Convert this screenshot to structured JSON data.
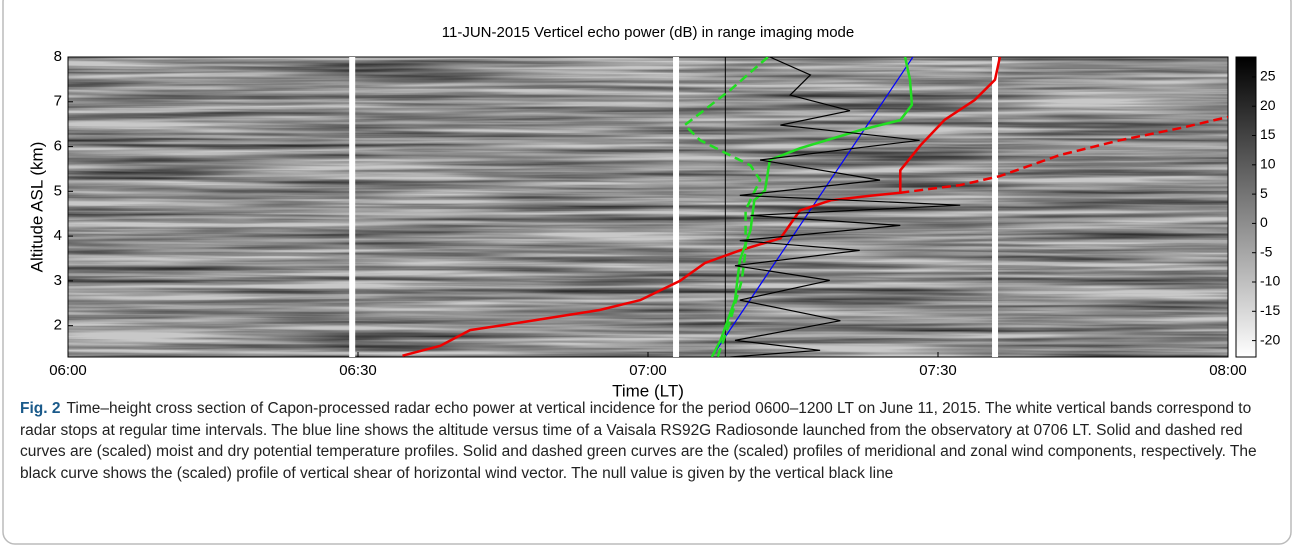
{
  "chart_data": {
    "type": "line",
    "title": "11-JUN-2015 Verticel echo power (dB) in range imaging mode",
    "xlabel": "Time (LT)",
    "ylabel": "Altitude ASL (km)",
    "xlim": [
      0,
      120
    ],
    "xticks": [
      {
        "value": 0,
        "label": "06:00"
      },
      {
        "value": 30,
        "label": "06:30"
      },
      {
        "value": 60,
        "label": "07:00"
      },
      {
        "value": 90,
        "label": "07:30"
      },
      {
        "value": 120,
        "label": "08:00"
      }
    ],
    "ylim": [
      1.3,
      8
    ],
    "yticks": [
      2,
      3,
      4,
      5,
      6,
      7,
      8
    ],
    "colorbar": {
      "lim": [
        -22.8,
        28.4
      ],
      "ticks": [
        25,
        20,
        15,
        10,
        5,
        0,
        -5,
        -10,
        -15,
        -20
      ]
    },
    "radar_stops": [
      29.4,
      62.9,
      95.9
    ],
    "null_line": 68.0,
    "series": [
      {
        "color": "#0000ff",
        "dash": false,
        "x": [
          66.6,
          87.4
        ],
        "values": [
          1.3,
          8
        ]
      },
      {
        "color": "#ee0000",
        "dash": false,
        "x": [
          34.6,
          38.5,
          41.6,
          46.8,
          55.0,
          59.2,
          63.3,
          65.9,
          69.5,
          73.7,
          75.7,
          78.9,
          83.0,
          86.1,
          86.1,
          88.2,
          90.7,
          93.8,
          95.9,
          96.4
        ],
        "values": [
          1.33,
          1.55,
          1.9,
          2.07,
          2.35,
          2.57,
          3.0,
          3.4,
          3.68,
          3.95,
          4.57,
          4.8,
          4.9,
          4.97,
          5.47,
          6.03,
          6.6,
          7.04,
          7.49,
          8
        ]
      },
      {
        "color": "#ee0000",
        "dash": true,
        "x": [
          86.1,
          92.3,
          96.4,
          102.6,
          108.8,
          115.0,
          120
        ],
        "values": [
          4.97,
          5.14,
          5.34,
          5.81,
          6.14,
          6.41,
          6.66
        ]
      },
      {
        "color": "#22dd22",
        "dash": false,
        "x": [
          86.6,
          87.1,
          87.3,
          86.1,
          82.0,
          75.7,
          72.6,
          72.1,
          71.0,
          70.6,
          69.5,
          69.0,
          67.5,
          66.6
        ],
        "values": [
          8,
          7.49,
          6.93,
          6.59,
          6.37,
          5.96,
          5.7,
          5.02,
          4.8,
          4.13,
          3.46,
          2.57,
          1.67,
          1.3
        ]
      },
      {
        "color": "#22dd22",
        "dash": true,
        "x": [
          72.4,
          68.5,
          63.8,
          65.4,
          70.6,
          71.6,
          70.1,
          70.1,
          69.7,
          68.5,
          67.2
        ],
        "values": [
          8,
          7.26,
          6.48,
          6.14,
          5.58,
          5.25,
          4.58,
          3.68,
          3.01,
          2.11,
          1.3
        ]
      },
      {
        "color": "#000000",
        "dash": false,
        "x": [
          72.6,
          76.8,
          74.7,
          80.9,
          73.7,
          88.1,
          71.6,
          84.0,
          69.5,
          92.3,
          70.6,
          86.1,
          69.5,
          81.9,
          69.0,
          78.8,
          69.5,
          79.9,
          69.0,
          77.8,
          68.5
        ],
        "values": [
          8,
          7.6,
          7.15,
          6.8,
          6.48,
          6.14,
          5.7,
          5.25,
          4.91,
          4.69,
          4.46,
          4.24,
          3.9,
          3.68,
          3.34,
          3.01,
          2.57,
          2.11,
          1.67,
          1.45,
          1.3
        ]
      }
    ]
  },
  "caption": {
    "label": "Fig. 2",
    "text": "Time–height cross section of Capon-processed radar echo power at vertical incidence for the period 0600–1200 LT on June 11, 2015. The white vertical bands correspond to radar stops at regular time intervals. The blue line shows the altitude versus time of a Vaisala RS92G Radiosonde launched from the observatory at 0706 LT. Solid and dashed red curves are (scaled) moist and dry potential temperature profiles. Solid and dashed green curves are the (scaled) profiles of meridional and zonal wind components, respectively. The black curve shows the (scaled) profile of vertical shear of horizontal wind vector. The null value is given by the vertical black line"
  }
}
